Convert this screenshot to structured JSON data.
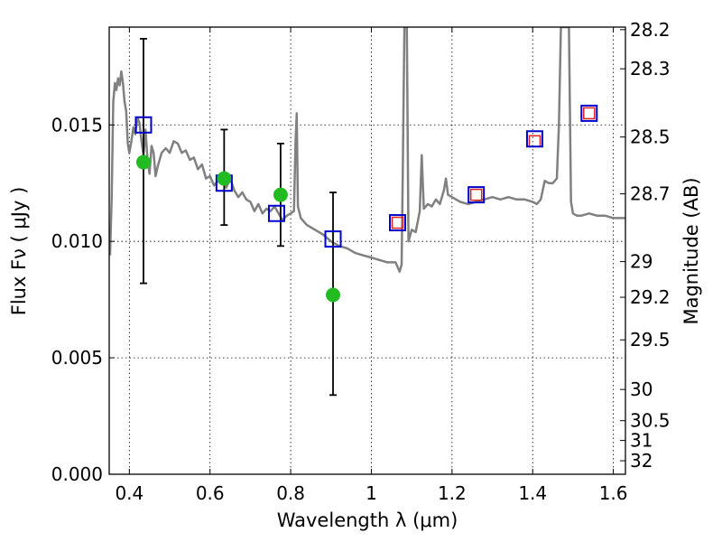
{
  "chart_data": {
    "type": "scatter",
    "title": "",
    "xlabel": "Wavelength  λ (μm)",
    "ylabel": "Flux  Fν ( μJy )",
    "y2label": "Magnitude (AB)",
    "xlim": [
      0.35,
      1.63
    ],
    "ylim": [
      0.0,
      0.0192
    ],
    "grid": true,
    "x_ticks": [
      {
        "value": 0.4,
        "label": "0.4"
      },
      {
        "value": 0.6,
        "label": "0.6"
      },
      {
        "value": 0.8,
        "label": "0.8"
      },
      {
        "value": 1.0,
        "label": "1"
      },
      {
        "value": 1.2,
        "label": "1.2"
      },
      {
        "value": 1.4,
        "label": "1.4"
      },
      {
        "value": 1.6,
        "label": "1.6"
      }
    ],
    "y_ticks": [
      {
        "value": 0.0,
        "label": "0.000"
      },
      {
        "value": 0.005,
        "label": "0.005"
      },
      {
        "value": 0.01,
        "label": "0.010"
      },
      {
        "value": 0.015,
        "label": "0.015"
      }
    ],
    "y2_ticks": [
      {
        "label": "28.2",
        "flux": 0.01909
      },
      {
        "label": "28.3",
        "flux": 0.01741
      },
      {
        "label": "28.5",
        "flux": 0.01448
      },
      {
        "label": "28.7",
        "flux": 0.01204
      },
      {
        "label": "29",
        "flux": 0.00913
      },
      {
        "label": "29.2",
        "flux": 0.0076
      },
      {
        "label": "29.5",
        "flux": 0.00577
      },
      {
        "label": "30",
        "flux": 0.00364
      },
      {
        "label": "30.5",
        "flux": 0.0023
      },
      {
        "label": "31",
        "flux": 0.00145
      },
      {
        "label": "32",
        "flux": 0.00058
      }
    ],
    "series": [
      {
        "kind": "sed-model",
        "color": "#808080",
        "points": [
          [
            0.352,
            0.0094
          ],
          [
            0.356,
            0.0118
          ],
          [
            0.36,
            0.016
          ],
          [
            0.364,
            0.0168
          ],
          [
            0.368,
            0.0165
          ],
          [
            0.372,
            0.017
          ],
          [
            0.376,
            0.0167
          ],
          [
            0.38,
            0.0173
          ],
          [
            0.384,
            0.0168
          ],
          [
            0.388,
            0.016
          ],
          [
            0.392,
            0.0156
          ],
          [
            0.396,
            0.0142
          ],
          [
            0.4,
            0.0138
          ],
          [
            0.405,
            0.0143
          ],
          [
            0.41,
            0.0149
          ],
          [
            0.415,
            0.0146
          ],
          [
            0.42,
            0.0153
          ],
          [
            0.425,
            0.0151
          ],
          [
            0.43,
            0.0143
          ],
          [
            0.435,
            0.0137
          ],
          [
            0.44,
            0.0148
          ],
          [
            0.445,
            0.0135
          ],
          [
            0.45,
            0.0129
          ],
          [
            0.455,
            0.0141
          ],
          [
            0.46,
            0.0138
          ],
          [
            0.465,
            0.0128
          ],
          [
            0.47,
            0.0132
          ],
          [
            0.48,
            0.0138
          ],
          [
            0.49,
            0.014
          ],
          [
            0.5,
            0.0138
          ],
          [
            0.51,
            0.0143
          ],
          [
            0.52,
            0.0142
          ],
          [
            0.53,
            0.0138
          ],
          [
            0.54,
            0.0139
          ],
          [
            0.55,
            0.0135
          ],
          [
            0.56,
            0.0136
          ],
          [
            0.57,
            0.0131
          ],
          [
            0.58,
            0.0133
          ],
          [
            0.59,
            0.0127
          ],
          [
            0.6,
            0.0128
          ],
          [
            0.61,
            0.0124
          ],
          [
            0.62,
            0.0126
          ],
          [
            0.63,
            0.0128
          ],
          [
            0.64,
            0.0123
          ],
          [
            0.65,
            0.0127
          ],
          [
            0.66,
            0.0122
          ],
          [
            0.67,
            0.0119
          ],
          [
            0.68,
            0.0121
          ],
          [
            0.69,
            0.0118
          ],
          [
            0.7,
            0.0117
          ],
          [
            0.71,
            0.0113
          ],
          [
            0.72,
            0.0116
          ],
          [
            0.73,
            0.0112
          ],
          [
            0.74,
            0.0114
          ],
          [
            0.75,
            0.0113
          ],
          [
            0.76,
            0.0115
          ],
          [
            0.77,
            0.0112
          ],
          [
            0.78,
            0.0109
          ],
          [
            0.79,
            0.0111
          ],
          [
            0.8,
            0.0112
          ],
          [
            0.808,
            0.0113
          ],
          [
            0.812,
            0.0143
          ],
          [
            0.815,
            0.0155
          ],
          [
            0.818,
            0.0115
          ],
          [
            0.825,
            0.011
          ],
          [
            0.84,
            0.0107
          ],
          [
            0.86,
            0.0105
          ],
          [
            0.88,
            0.0103
          ],
          [
            0.9,
            0.01
          ],
          [
            0.92,
            0.0098
          ],
          [
            0.94,
            0.0097
          ],
          [
            0.96,
            0.0095
          ],
          [
            0.98,
            0.0094
          ],
          [
            1.0,
            0.0093
          ],
          [
            1.02,
            0.0092
          ],
          [
            1.04,
            0.0091
          ],
          [
            1.06,
            0.0091
          ],
          [
            1.07,
            0.0087
          ],
          [
            1.075,
            0.009
          ],
          [
            1.078,
            0.013
          ],
          [
            1.082,
            0.0192
          ],
          [
            1.088,
            0.0192
          ],
          [
            1.092,
            0.01
          ],
          [
            1.1,
            0.0105
          ],
          [
            1.11,
            0.0104
          ],
          [
            1.12,
            0.0113
          ],
          [
            1.125,
            0.0137
          ],
          [
            1.13,
            0.0114
          ],
          [
            1.14,
            0.0116
          ],
          [
            1.15,
            0.0115
          ],
          [
            1.16,
            0.0118
          ],
          [
            1.17,
            0.0116
          ],
          [
            1.18,
            0.0122
          ],
          [
            1.185,
            0.0127
          ],
          [
            1.19,
            0.012
          ],
          [
            1.2,
            0.0119
          ],
          [
            1.21,
            0.0118
          ],
          [
            1.22,
            0.0117
          ],
          [
            1.24,
            0.0116
          ],
          [
            1.26,
            0.0117
          ],
          [
            1.28,
            0.0118
          ],
          [
            1.3,
            0.0119
          ],
          [
            1.32,
            0.0118
          ],
          [
            1.34,
            0.0119
          ],
          [
            1.36,
            0.0118
          ],
          [
            1.38,
            0.0118
          ],
          [
            1.4,
            0.0117
          ],
          [
            1.41,
            0.0116
          ],
          [
            1.42,
            0.0118
          ],
          [
            1.43,
            0.0126
          ],
          [
            1.44,
            0.0125
          ],
          [
            1.45,
            0.0125
          ],
          [
            1.46,
            0.0127
          ],
          [
            1.465,
            0.015
          ],
          [
            1.47,
            0.0192
          ],
          [
            1.49,
            0.0192
          ],
          [
            1.495,
            0.0117
          ],
          [
            1.5,
            0.0112
          ],
          [
            1.51,
            0.0111
          ],
          [
            1.52,
            0.0111
          ],
          [
            1.54,
            0.0112
          ],
          [
            1.56,
            0.0111
          ],
          [
            1.58,
            0.0111
          ],
          [
            1.6,
            0.011
          ],
          [
            1.63,
            0.011
          ]
        ]
      },
      {
        "kind": "observed",
        "color": "#22bb22",
        "points": [
          {
            "x": 0.435,
            "y": 0.0134,
            "ylo": 0.0082,
            "yhi": 0.0187
          },
          {
            "x": 0.635,
            "y": 0.0127,
            "ylo": 0.0107,
            "yhi": 0.0148
          },
          {
            "x": 0.775,
            "y": 0.012,
            "ylo": 0.0098,
            "yhi": 0.0142
          },
          {
            "x": 0.905,
            "y": 0.0077,
            "ylo": 0.0034,
            "yhi": 0.0121
          }
        ]
      },
      {
        "kind": "model-photometry",
        "color": "#0000cc",
        "points": [
          {
            "x": 0.435,
            "y": 0.015
          },
          {
            "x": 0.635,
            "y": 0.0125
          },
          {
            "x": 0.765,
            "y": 0.0112
          },
          {
            "x": 0.905,
            "y": 0.0101
          },
          {
            "x": 1.065,
            "y": 0.0108
          },
          {
            "x": 1.26,
            "y": 0.012
          },
          {
            "x": 1.405,
            "y": 0.0144
          },
          {
            "x": 1.54,
            "y": 0.0155
          }
        ]
      },
      {
        "kind": "model-photometry-nir",
        "color": "#dd2222",
        "points": [
          {
            "x": 1.065,
            "y": 0.0108
          },
          {
            "x": 1.26,
            "y": 0.012
          },
          {
            "x": 1.405,
            "y": 0.0143
          },
          {
            "x": 1.54,
            "y": 0.0155
          }
        ]
      }
    ]
  }
}
